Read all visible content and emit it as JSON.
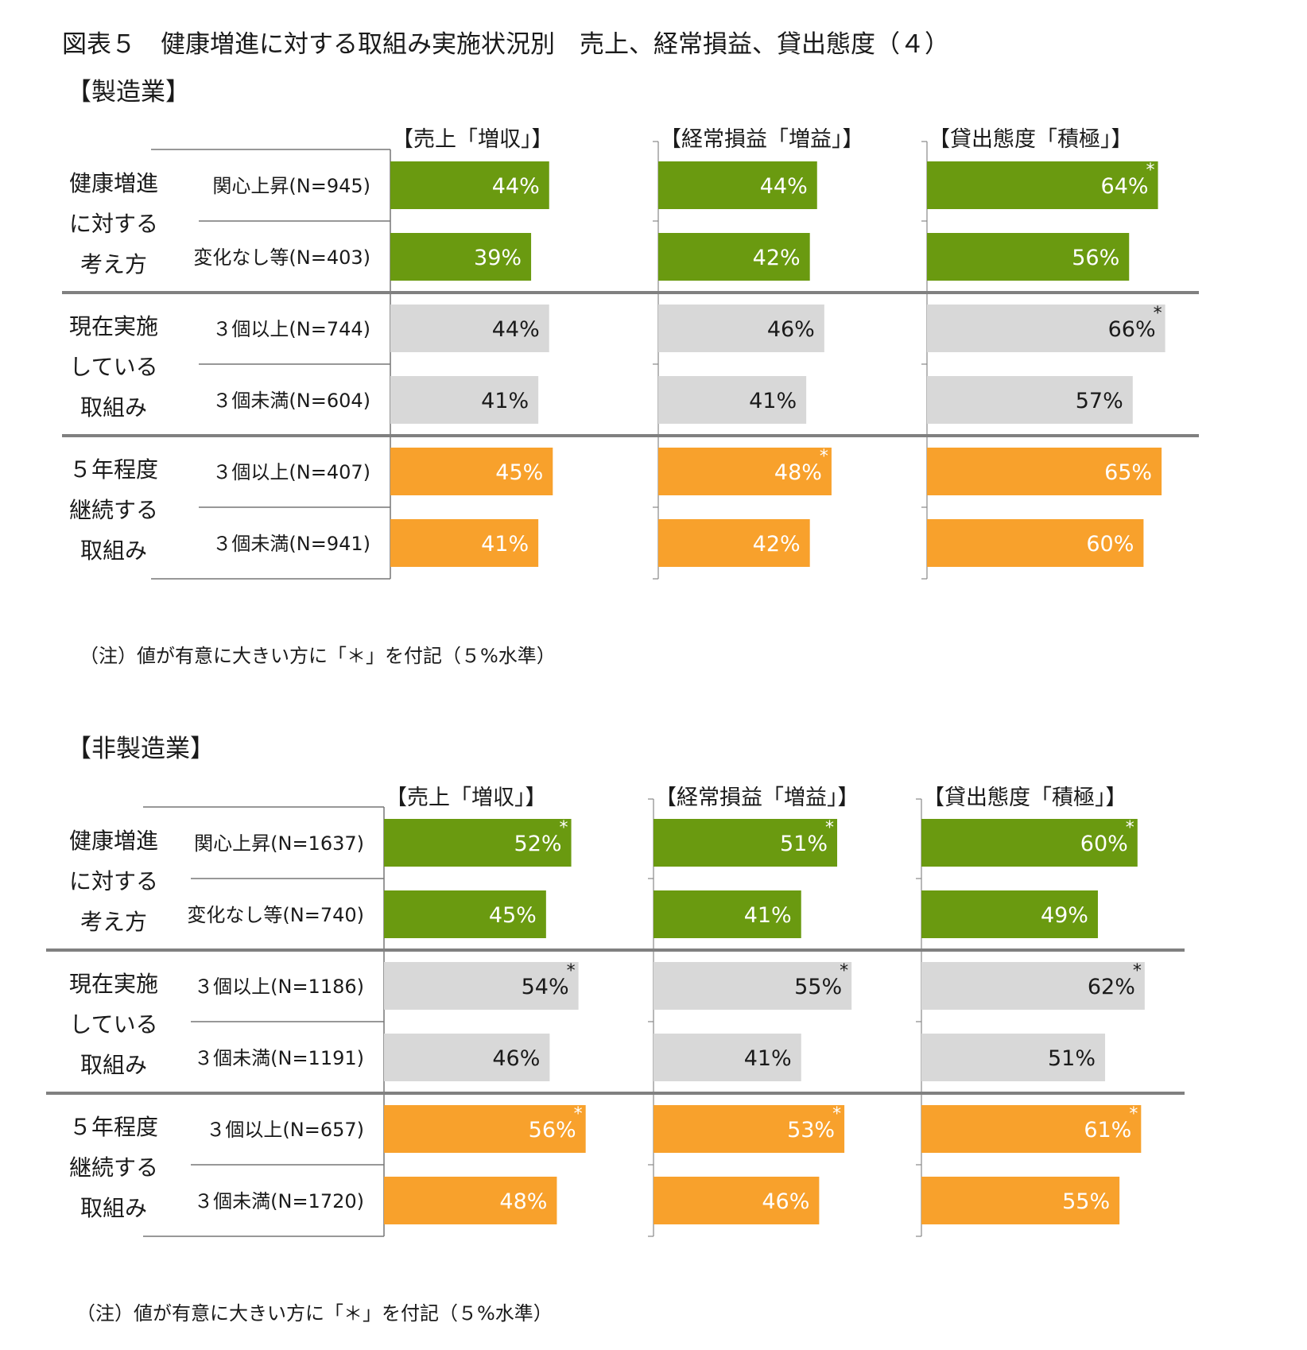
{
  "title": "図表５　健康増進に対する取組み実施状況別　売上、経常損益、貸出態度（４）",
  "note": "（注）値が有意に大きい方に「＊」を付記（５%水準）",
  "colors": {
    "green": "#6a9a10",
    "gray": "#d8d8d8",
    "orange": "#f8a12c"
  },
  "chart_data": [
    {
      "type": "bar",
      "title": "【製造業】",
      "groups": [
        {
          "label_lines": [
            "健康増進",
            "に対する",
            "考え方"
          ],
          "color": "green",
          "rows": [
            "関心上昇(N=945)",
            "変化なし等(N=403)"
          ]
        },
        {
          "label_lines": [
            "現在実施",
            "している",
            "取組み"
          ],
          "color": "gray",
          "rows": [
            "３個以上(N=744)",
            "３個未満(N=604)"
          ]
        },
        {
          "label_lines": [
            "５年程度",
            "継続する",
            "取組み"
          ],
          "color": "orange",
          "rows": [
            "３個以上(N=407)",
            "３個未満(N=941)"
          ]
        }
      ],
      "series": [
        {
          "name": "【売上「増収」】",
          "values": [
            44,
            39,
            44,
            41,
            45,
            41
          ],
          "labels": [
            "44%",
            "39%",
            "44%",
            "41%",
            "45%",
            "41%"
          ],
          "significant": [
            false,
            false,
            false,
            false,
            false,
            false
          ]
        },
        {
          "name": "【経常損益「増益」】",
          "values": [
            44,
            42,
            46,
            41,
            48,
            42
          ],
          "labels": [
            "44%",
            "42%",
            "46%",
            "41%",
            "48%",
            "42%"
          ],
          "significant": [
            false,
            false,
            false,
            false,
            true,
            false
          ]
        },
        {
          "name": "【貸出態度「積極」】",
          "values": [
            64,
            56,
            66,
            57,
            65,
            60
          ],
          "labels": [
            "64%",
            "56%",
            "66%",
            "57%",
            "65%",
            "60%"
          ],
          "significant": [
            true,
            false,
            true,
            false,
            false,
            false
          ]
        }
      ],
      "significance_mark": "*",
      "unit": "%"
    },
    {
      "type": "bar",
      "title": "【非製造業】",
      "groups": [
        {
          "label_lines": [
            "健康増進",
            "に対する",
            "考え方"
          ],
          "color": "green",
          "rows": [
            "関心上昇(N=1637)",
            "変化なし等(N=740)"
          ]
        },
        {
          "label_lines": [
            "現在実施",
            "している",
            "取組み"
          ],
          "color": "gray",
          "rows": [
            "３個以上(N=1186)",
            "３個未満(N=1191)"
          ]
        },
        {
          "label_lines": [
            "５年程度",
            "継続する",
            "取組み"
          ],
          "color": "orange",
          "rows": [
            "３個以上(N=657)",
            "３個未満(N=1720)"
          ]
        }
      ],
      "series": [
        {
          "name": "【売上「増収」】",
          "values": [
            52,
            45,
            54,
            46,
            56,
            48
          ],
          "labels": [
            "52%",
            "45%",
            "54%",
            "46%",
            "56%",
            "48%"
          ],
          "significant": [
            true,
            false,
            true,
            false,
            true,
            false
          ]
        },
        {
          "name": "【経常損益「増益」】",
          "values": [
            51,
            41,
            55,
            41,
            53,
            46
          ],
          "labels": [
            "51%",
            "41%",
            "55%",
            "41%",
            "53%",
            "46%"
          ],
          "significant": [
            true,
            false,
            true,
            false,
            true,
            false
          ]
        },
        {
          "name": "【貸出態度「積極」】",
          "values": [
            60,
            49,
            62,
            51,
            61,
            55
          ],
          "labels": [
            "60%",
            "49%",
            "62%",
            "51%",
            "61%",
            "55%"
          ],
          "significant": [
            true,
            false,
            true,
            false,
            true,
            false
          ]
        }
      ],
      "significance_mark": "*",
      "unit": "%"
    }
  ]
}
